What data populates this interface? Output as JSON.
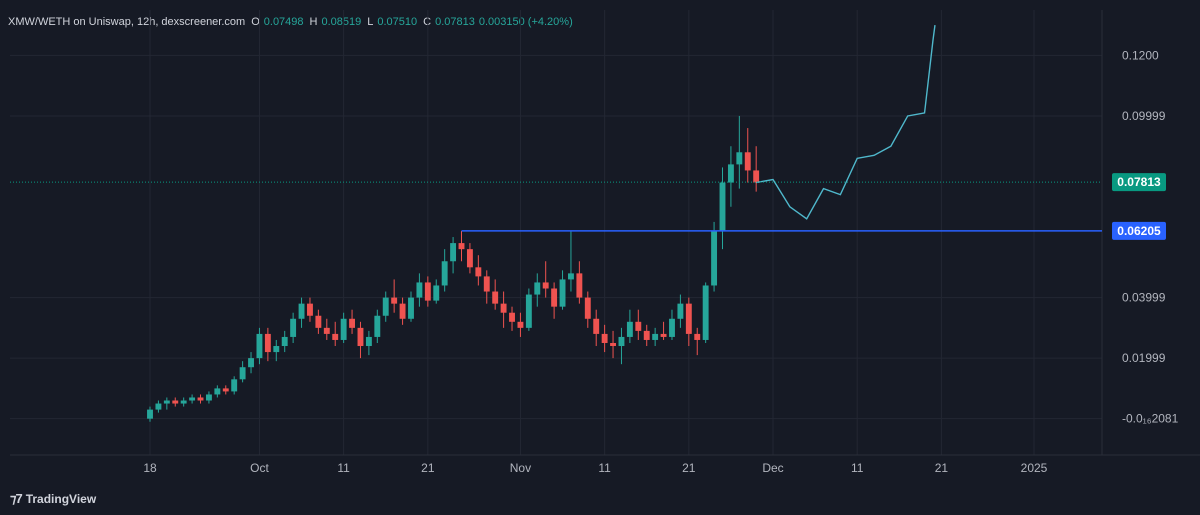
{
  "header": {
    "title": "XMW/WETH on Uniswap, 12h, dexscreener.com",
    "o_label": "O",
    "o_value": "0.07498",
    "h_label": "H",
    "h_value": "0.08519",
    "l_label": "L",
    "l_value": "0.07510",
    "c_label": "C",
    "c_value": "0.07813",
    "change": "0.003150 (+4.20%)"
  },
  "brand": {
    "name": "TradingView",
    "icon": "tradingview-logo-icon"
  },
  "colors": {
    "background": "#161a25",
    "grid": "#232733",
    "up": "#26a69a",
    "down": "#ef5350",
    "level_line": "#2962ff",
    "projection": "#4fb8cc"
  },
  "chart_data": {
    "type": "candlestick",
    "title": "XMW/WETH on Uniswap, 12h, dexscreener.com",
    "grid": true,
    "x_tick_labels": [
      "18",
      "Oct",
      "11",
      "21",
      "Nov",
      "11",
      "21",
      "Dec",
      "11",
      "21",
      "2025"
    ],
    "y_tick_labels": [
      "0.1200",
      "0.09999",
      "0.03999",
      "0.01999",
      "-0.0₁₆2081"
    ],
    "y_tick_values": [
      0.12,
      0.09999,
      0.03999,
      0.01999,
      0.0
    ],
    "ylim": [
      -0.012,
      0.135
    ],
    "x_range": [
      "2024-09-18",
      "2025-01-01"
    ],
    "last_price": {
      "label": "0.07813",
      "value": 0.07813,
      "color": "#089981"
    },
    "horizontal_level": {
      "label": "0.06205",
      "value": 0.06205,
      "start": "2024-10-25"
    },
    "ohlc": [
      [
        "2024-09-18",
        0.0,
        0.004,
        -0.001,
        0.003
      ],
      [
        "2024-09-19",
        0.003,
        0.006,
        0.002,
        0.005
      ],
      [
        "2024-09-20",
        0.005,
        0.007,
        0.003,
        0.006
      ],
      [
        "2024-09-21",
        0.006,
        0.007,
        0.004,
        0.005
      ],
      [
        "2024-09-22",
        0.005,
        0.007,
        0.004,
        0.006
      ],
      [
        "2024-09-23",
        0.006,
        0.008,
        0.005,
        0.007
      ],
      [
        "2024-09-24",
        0.007,
        0.008,
        0.005,
        0.006
      ],
      [
        "2024-09-25",
        0.006,
        0.009,
        0.005,
        0.008
      ],
      [
        "2024-09-26",
        0.008,
        0.011,
        0.007,
        0.01
      ],
      [
        "2024-09-27",
        0.01,
        0.011,
        0.008,
        0.009
      ],
      [
        "2024-09-28",
        0.009,
        0.014,
        0.008,
        0.013
      ],
      [
        "2024-09-29",
        0.013,
        0.019,
        0.012,
        0.017
      ],
      [
        "2024-09-30",
        0.017,
        0.022,
        0.015,
        0.02
      ],
      [
        "2024-10-01",
        0.02,
        0.03,
        0.018,
        0.028
      ],
      [
        "2024-10-02",
        0.028,
        0.03,
        0.019,
        0.022
      ],
      [
        "2024-10-03",
        0.022,
        0.026,
        0.019,
        0.024
      ],
      [
        "2024-10-04",
        0.024,
        0.029,
        0.022,
        0.027
      ],
      [
        "2024-10-05",
        0.027,
        0.035,
        0.025,
        0.033
      ],
      [
        "2024-10-06",
        0.033,
        0.04,
        0.03,
        0.038
      ],
      [
        "2024-10-07",
        0.038,
        0.04,
        0.032,
        0.034
      ],
      [
        "2024-10-08",
        0.034,
        0.036,
        0.028,
        0.03
      ],
      [
        "2024-10-09",
        0.03,
        0.033,
        0.026,
        0.028
      ],
      [
        "2024-10-10",
        0.028,
        0.032,
        0.024,
        0.026
      ],
      [
        "2024-10-11",
        0.026,
        0.035,
        0.025,
        0.033
      ],
      [
        "2024-10-12",
        0.033,
        0.036,
        0.028,
        0.03
      ],
      [
        "2024-10-13",
        0.03,
        0.032,
        0.02,
        0.024
      ],
      [
        "2024-10-14",
        0.024,
        0.029,
        0.021,
        0.027
      ],
      [
        "2024-10-15",
        0.027,
        0.036,
        0.025,
        0.034
      ],
      [
        "2024-10-16",
        0.034,
        0.042,
        0.032,
        0.04
      ],
      [
        "2024-10-17",
        0.04,
        0.046,
        0.035,
        0.038
      ],
      [
        "2024-10-18",
        0.038,
        0.04,
        0.031,
        0.033
      ],
      [
        "2024-10-19",
        0.033,
        0.042,
        0.032,
        0.04
      ],
      [
        "2024-10-20",
        0.04,
        0.048,
        0.037,
        0.045
      ],
      [
        "2024-10-21",
        0.045,
        0.047,
        0.037,
        0.039
      ],
      [
        "2024-10-22",
        0.039,
        0.046,
        0.038,
        0.044
      ],
      [
        "2024-10-23",
        0.044,
        0.056,
        0.042,
        0.052
      ],
      [
        "2024-10-24",
        0.052,
        0.06,
        0.048,
        0.058
      ],
      [
        "2024-10-25",
        0.058,
        0.062,
        0.052,
        0.056
      ],
      [
        "2024-10-26",
        0.056,
        0.058,
        0.048,
        0.05
      ],
      [
        "2024-10-27",
        0.05,
        0.054,
        0.044,
        0.047
      ],
      [
        "2024-10-28",
        0.047,
        0.049,
        0.038,
        0.042
      ],
      [
        "2024-10-29",
        0.042,
        0.046,
        0.036,
        0.038
      ],
      [
        "2024-10-30",
        0.038,
        0.042,
        0.03,
        0.035
      ],
      [
        "2024-10-31",
        0.035,
        0.037,
        0.029,
        0.032
      ],
      [
        "2024-11-01",
        0.032,
        0.035,
        0.027,
        0.03
      ],
      [
        "2024-11-02",
        0.03,
        0.043,
        0.029,
        0.041
      ],
      [
        "2024-11-03",
        0.041,
        0.048,
        0.037,
        0.045
      ],
      [
        "2024-11-04",
        0.045,
        0.052,
        0.04,
        0.043
      ],
      [
        "2024-11-05",
        0.043,
        0.045,
        0.033,
        0.037
      ],
      [
        "2024-11-06",
        0.037,
        0.049,
        0.036,
        0.046
      ],
      [
        "2024-11-07",
        0.046,
        0.062,
        0.042,
        0.048
      ],
      [
        "2024-11-08",
        0.048,
        0.052,
        0.038,
        0.04
      ],
      [
        "2024-11-09",
        0.04,
        0.042,
        0.03,
        0.033
      ],
      [
        "2024-11-10",
        0.033,
        0.036,
        0.024,
        0.028
      ],
      [
        "2024-11-11",
        0.028,
        0.031,
        0.022,
        0.025
      ],
      [
        "2024-11-12",
        0.025,
        0.029,
        0.02,
        0.024
      ],
      [
        "2024-11-13",
        0.024,
        0.03,
        0.018,
        0.027
      ],
      [
        "2024-11-14",
        0.027,
        0.036,
        0.025,
        0.032
      ],
      [
        "2024-11-15",
        0.032,
        0.036,
        0.026,
        0.029
      ],
      [
        "2024-11-16",
        0.029,
        0.031,
        0.024,
        0.026
      ],
      [
        "2024-11-17",
        0.026,
        0.03,
        0.024,
        0.028
      ],
      [
        "2024-11-18",
        0.028,
        0.032,
        0.026,
        0.027
      ],
      [
        "2024-11-19",
        0.027,
        0.036,
        0.026,
        0.033
      ],
      [
        "2024-11-20",
        0.033,
        0.041,
        0.03,
        0.038
      ],
      [
        "2024-11-21",
        0.038,
        0.04,
        0.024,
        0.028
      ],
      [
        "2024-11-22",
        0.028,
        0.03,
        0.021,
        0.026
      ],
      [
        "2024-11-23",
        0.026,
        0.045,
        0.025,
        0.044
      ],
      [
        "2024-11-24",
        0.044,
        0.065,
        0.042,
        0.062
      ],
      [
        "2024-11-25",
        0.062,
        0.083,
        0.056,
        0.078
      ],
      [
        "2024-11-26",
        0.078,
        0.09,
        0.07,
        0.084
      ],
      [
        "2024-11-27",
        0.084,
        0.1,
        0.076,
        0.088
      ],
      [
        "2024-11-28",
        0.088,
        0.096,
        0.078,
        0.082
      ],
      [
        "2024-11-29",
        0.082,
        0.09,
        0.075,
        0.078
      ]
    ],
    "projection_path": [
      [
        "2024-11-29",
        0.078
      ],
      [
        "2024-12-01",
        0.079
      ],
      [
        "2024-12-03",
        0.07
      ],
      [
        "2024-12-05",
        0.066
      ],
      [
        "2024-12-07",
        0.076
      ],
      [
        "2024-12-09",
        0.074
      ],
      [
        "2024-12-11",
        0.086
      ],
      [
        "2024-12-13",
        0.087
      ],
      [
        "2024-12-15",
        0.09
      ],
      [
        "2024-12-17",
        0.1
      ],
      [
        "2024-12-19",
        0.101
      ],
      [
        "2024-12-20",
        0.125
      ],
      [
        "2024-12-20",
        0.13
      ]
    ]
  }
}
